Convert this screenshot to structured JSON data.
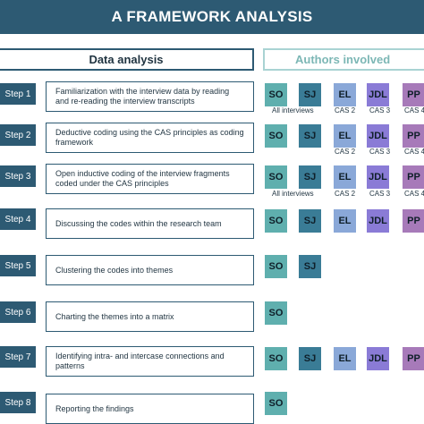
{
  "title": "A FRAMEWORK ANALYSIS",
  "headers": {
    "data_analysis": "Data analysis",
    "authors_involved": "Authors involved"
  },
  "steps": [
    {
      "label": "Step 1",
      "text": "Familiarization with the interview data by reading and re-reading the interview transcripts",
      "authors": [
        "SO",
        "SJ",
        "EL",
        "JDL",
        "PP"
      ],
      "captions": {
        "SO": "All interviews",
        "EL": "CAS 2",
        "JDL": "CAS 3",
        "PP": "CAS 4"
      }
    },
    {
      "label": "Step 2",
      "text": "Deductive coding using the CAS principles as coding framework",
      "authors": [
        "SO",
        "SJ",
        "EL",
        "JDL",
        "PP"
      ],
      "captions": {
        "EL": "CAS 2",
        "JDL": "CAS 3",
        "PP": "CAS 4"
      }
    },
    {
      "label": "Step 3",
      "text": "Open inductive coding of the interview fragments coded under the CAS principles",
      "authors": [
        "SO",
        "SJ",
        "EL",
        "JDL",
        "PP"
      ],
      "captions": {
        "SO": "All interviews",
        "EL": "CAS 2",
        "JDL": "CAS 3",
        "PP": "CAS 4"
      }
    },
    {
      "label": "Step 4",
      "text": "Discussing the codes within the research team",
      "authors": [
        "SO",
        "SJ",
        "EL",
        "JDL",
        "PP"
      ],
      "captions": {}
    },
    {
      "label": "Step 5",
      "text": "Clustering the codes into themes",
      "authors": [
        "SO",
        "SJ"
      ],
      "captions": {}
    },
    {
      "label": "Step 6",
      "text": "Charting the themes into a matrix",
      "authors": [
        "SO"
      ],
      "captions": {}
    },
    {
      "label": "Step 7",
      "text": "Identifying intra- and intercase connections and patterns",
      "authors": [
        "SO",
        "SJ",
        "EL",
        "JDL",
        "PP"
      ],
      "captions": {}
    },
    {
      "label": "Step 8",
      "text": "Reporting the findings",
      "authors": [
        "SO"
      ],
      "captions": {}
    }
  ]
}
